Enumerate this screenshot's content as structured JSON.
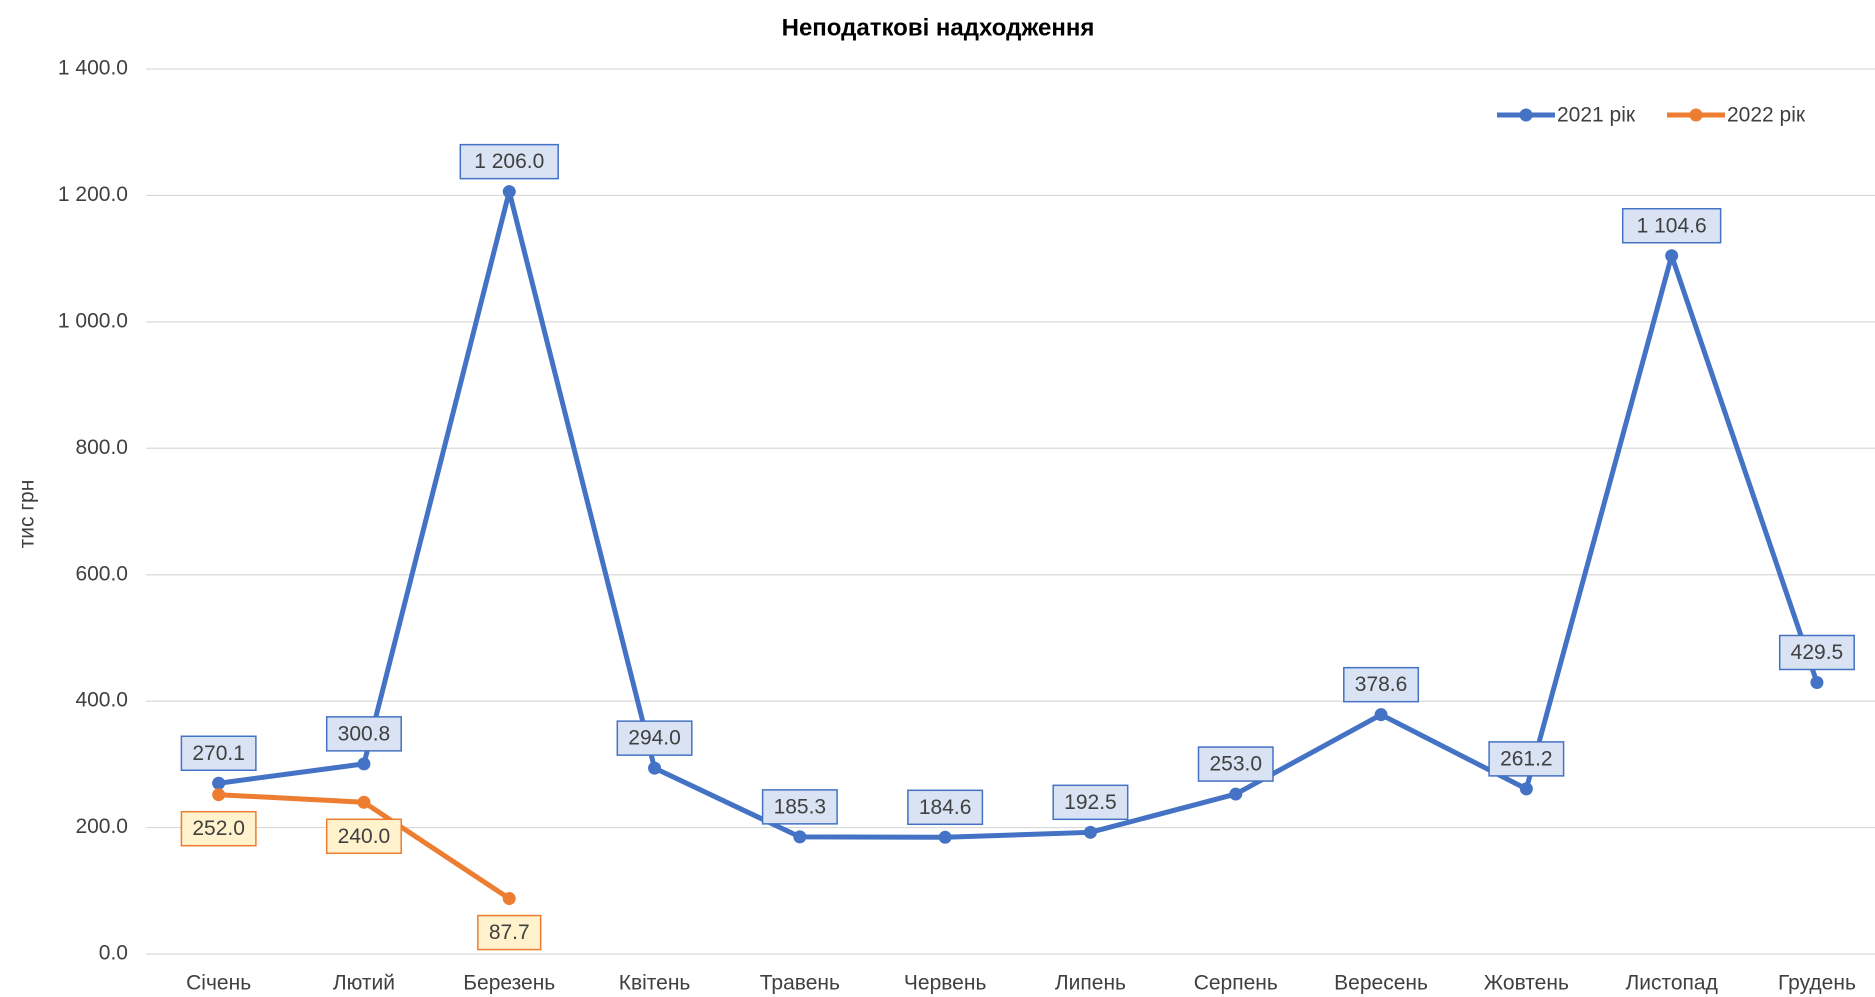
{
  "chart_data": {
    "type": "line",
    "title": "Неподаткові надходження",
    "y_label": "тис грн",
    "categories": [
      "Січень",
      "Лютий",
      "Березень",
      "Квітень",
      "Травень",
      "Червень",
      "Липень",
      "Серпень",
      "Вересень",
      "Жовтень",
      "Листопад",
      "Грудень"
    ],
    "series": [
      {
        "name": "2021 рік",
        "color": "#4472c4",
        "label_fill": "#dae3f3",
        "values": [
          270.1,
          300.8,
          1206.0,
          294.0,
          185.3,
          184.6,
          192.5,
          253.0,
          378.6,
          261.2,
          1104.6,
          429.5
        ],
        "value_labels": [
          "270.1",
          "300.8",
          "1 206.0",
          "294.0",
          "185.3",
          "184.6",
          "192.5",
          "253.0",
          "378.6",
          "261.2",
          "1 104.6",
          "429.5"
        ]
      },
      {
        "name": "2022 рік",
        "color": "#ed7d31",
        "label_fill": "#fff2cc",
        "values": [
          252.0,
          240.0,
          87.7,
          null,
          null,
          null,
          null,
          null,
          null,
          null,
          null,
          null
        ],
        "value_labels": [
          "252.0",
          "240.0",
          "87.7",
          null,
          null,
          null,
          null,
          null,
          null,
          null,
          null,
          null
        ]
      }
    ],
    "ylim": [
      0,
      1400
    ],
    "yticks": [
      {
        "value": 0,
        "label": "0.0"
      },
      {
        "value": 200,
        "label": "200.0"
      },
      {
        "value": 400,
        "label": "400.0"
      },
      {
        "value": 600,
        "label": "600.0"
      },
      {
        "value": 800,
        "label": "800.0"
      },
      {
        "value": 1000,
        "label": "1 000.0"
      },
      {
        "value": 1200,
        "label": "1 200.0"
      },
      {
        "value": 1400,
        "label": "1 400.0"
      }
    ],
    "grid": true,
    "legend": "top-right"
  }
}
